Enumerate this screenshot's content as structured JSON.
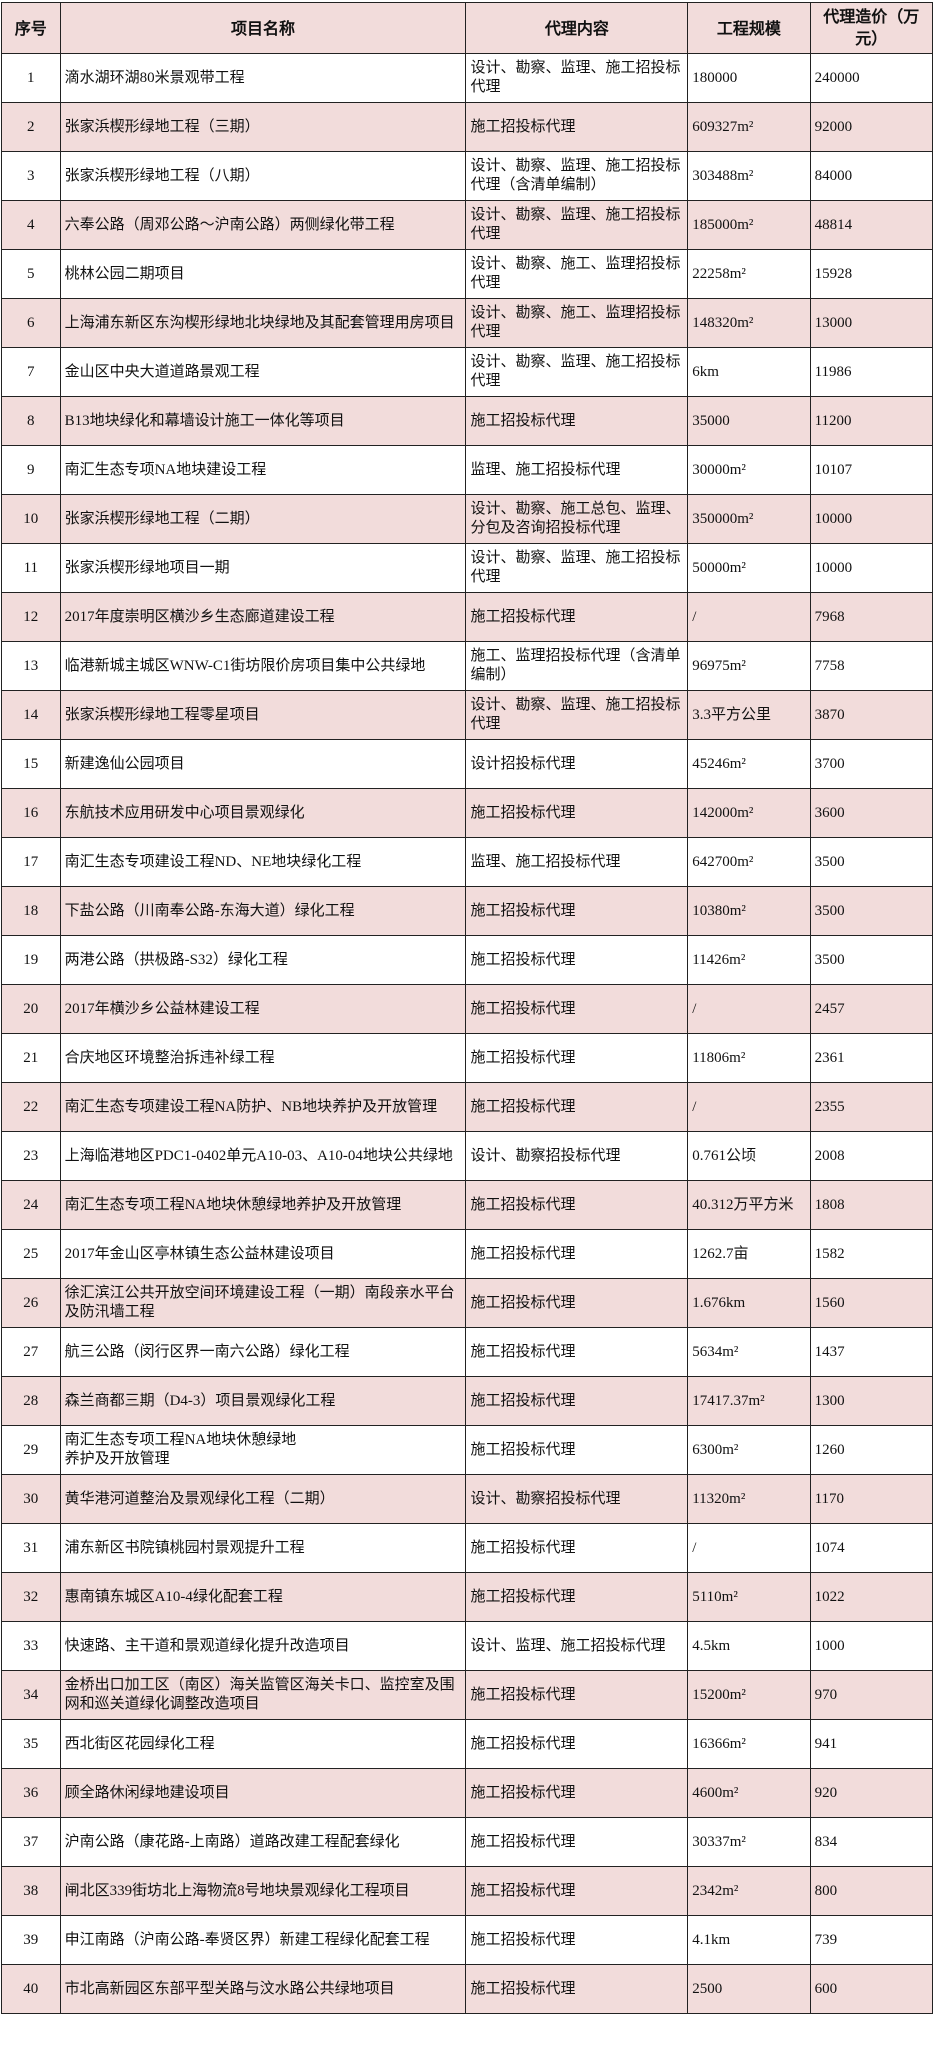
{
  "colors": {
    "header_bg": "#f2dcdb",
    "stripe_bg": "#f2dcdb",
    "border": "#222222"
  },
  "headers": {
    "seq": "序号",
    "name": "项目名称",
    "scope": "代理内容",
    "scale": "工程规模",
    "fee": "代理造价（万元）"
  },
  "rows": [
    [
      "1",
      "滴水湖环湖80米景观带工程",
      "设计、勘察、监理、施工招投标代理",
      "180000",
      "240000"
    ],
    [
      "2",
      "张家浜楔形绿地工程（三期）",
      "施工招投标代理",
      "609327m²",
      "92000"
    ],
    [
      "3",
      "张家浜楔形绿地工程（八期）",
      "设计、勘察、监理、施工招投标代理（含清单编制）",
      "303488m²",
      "84000"
    ],
    [
      "4",
      "六奉公路（周邓公路～沪南公路）两侧绿化带工程",
      "设计、勘察、监理、施工招投标代理",
      "185000m²",
      "48814"
    ],
    [
      "5",
      "桃林公园二期项目",
      "设计、勘察、施工、监理招投标代理",
      "22258m²",
      "15928"
    ],
    [
      "6",
      "上海浦东新区东沟楔形绿地北块绿地及其配套管理用房项目",
      "设计、勘察、施工、监理招投标代理",
      "148320m²",
      "13000"
    ],
    [
      "7",
      "金山区中央大道道路景观工程",
      "设计、勘察、监理、施工招投标代理",
      "6km",
      "11986"
    ],
    [
      "8",
      "B13地块绿化和幕墙设计施工一体化等项目",
      "施工招投标代理",
      "35000",
      "11200"
    ],
    [
      "9",
      "南汇生态专项NA地块建设工程",
      "监理、施工招投标代理",
      "30000m²",
      "10107"
    ],
    [
      "10",
      "张家浜楔形绿地工程（二期）",
      "设计、勘察、施工总包、监理、分包及咨询招投标代理",
      "350000m²",
      "10000"
    ],
    [
      "11",
      "张家浜楔形绿地项目一期",
      "设计、勘察、监理、施工招投标代理",
      "50000m²",
      "10000"
    ],
    [
      "12",
      "2017年度崇明区横沙乡生态廊道建设工程",
      "施工招投标代理",
      "/",
      "7968"
    ],
    [
      "13",
      "临港新城主城区WNW-C1街坊限价房项目集中公共绿地",
      "施工、监理招投标代理（含清单编制）",
      "96975m²",
      "7758"
    ],
    [
      "14",
      "张家浜楔形绿地工程零星项目",
      "设计、勘察、监理、施工招投标代理",
      "3.3平方公里",
      "3870"
    ],
    [
      "15",
      "新建逸仙公园项目",
      "设计招投标代理",
      "45246m²",
      "3700"
    ],
    [
      "16",
      "东航技术应用研发中心项目景观绿化",
      "施工招投标代理",
      "142000m²",
      "3600"
    ],
    [
      "17",
      "南汇生态专项建设工程ND、NE地块绿化工程",
      "监理、施工招投标代理",
      "642700m²",
      "3500"
    ],
    [
      "18",
      "下盐公路（川南奉公路-东海大道）绿化工程",
      "施工招投标代理",
      "10380m²",
      "3500"
    ],
    [
      "19",
      "两港公路（拱极路-S32）绿化工程",
      "施工招投标代理",
      "11426m²",
      "3500"
    ],
    [
      "20",
      "2017年横沙乡公益林建设工程",
      "施工招投标代理",
      "/",
      "2457"
    ],
    [
      "21",
      "合庆地区环境整治拆违补绿工程",
      "施工招投标代理",
      "11806m²",
      "2361"
    ],
    [
      "22",
      "南汇生态专项建设工程NA防护、NB地块养护及开放管理",
      "施工招投标代理",
      "/",
      "2355"
    ],
    [
      "23",
      "上海临港地区PDC1-0402单元A10-03、A10-04地块公共绿地",
      "设计、勘察招投标代理",
      "0.761公顷",
      "2008"
    ],
    [
      "24",
      "南汇生态专项工程NA地块休憩绿地养护及开放管理",
      "施工招投标代理",
      "40.312万平方米",
      "1808"
    ],
    [
      "25",
      "2017年金山区亭林镇生态公益林建设项目",
      "施工招投标代理",
      "1262.7亩",
      "1582"
    ],
    [
      "26",
      "徐汇滨江公共开放空间环境建设工程（一期）南段亲水平台及防汛墙工程",
      "施工招投标代理",
      "1.676km",
      "1560"
    ],
    [
      "27",
      "航三公路（闵行区界一南六公路）绿化工程",
      "施工招投标代理",
      "5634m²",
      "1437"
    ],
    [
      "28",
      "森兰商都三期（D4-3）项目景观绿化工程",
      "施工招投标代理",
      "17417.37m²",
      "1300"
    ],
    [
      "29",
      "南汇生态专项工程NA地块休憩绿地\n养护及开放管理",
      "施工招投标代理",
      "6300m²",
      "1260"
    ],
    [
      "30",
      "黄华港河道整治及景观绿化工程（二期）",
      "设计、勘察招投标代理",
      "11320m²",
      "1170"
    ],
    [
      "31",
      "浦东新区书院镇桃园村景观提升工程",
      "施工招投标代理",
      "/",
      "1074"
    ],
    [
      "32",
      "惠南镇东城区A10-4绿化配套工程",
      "施工招投标代理",
      "5110m²",
      "1022"
    ],
    [
      "33",
      "快速路、主干道和景观道绿化提升改造项目",
      "设计、监理、施工招投标代理",
      "4.5km",
      "1000"
    ],
    [
      "34",
      "金桥出口加工区（南区）海关监管区海关卡口、监控室及围网和巡关道绿化调整改造项目",
      "施工招投标代理",
      "15200m²",
      "970"
    ],
    [
      "35",
      "西北街区花园绿化工程",
      "施工招投标代理",
      "16366m²",
      "941"
    ],
    [
      "36",
      "顾全路休闲绿地建设项目",
      "施工招投标代理",
      "4600m²",
      "920"
    ],
    [
      "37",
      "沪南公路（康花路-上南路）道路改建工程配套绿化",
      "施工招投标代理",
      "30337m²",
      "834"
    ],
    [
      "38",
      "闸北区339街坊北上海物流8号地块景观绿化工程项目",
      "施工招投标代理",
      "2342m²",
      "800"
    ],
    [
      "39",
      "申江南路（沪南公路-奉贤区界）新建工程绿化配套工程",
      "施工招投标代理",
      "4.1km",
      "739"
    ],
    [
      "40",
      "市北高新园区东部平型关路与汶水路公共绿地项目",
      "施工招投标代理",
      "2500",
      "600"
    ]
  ]
}
